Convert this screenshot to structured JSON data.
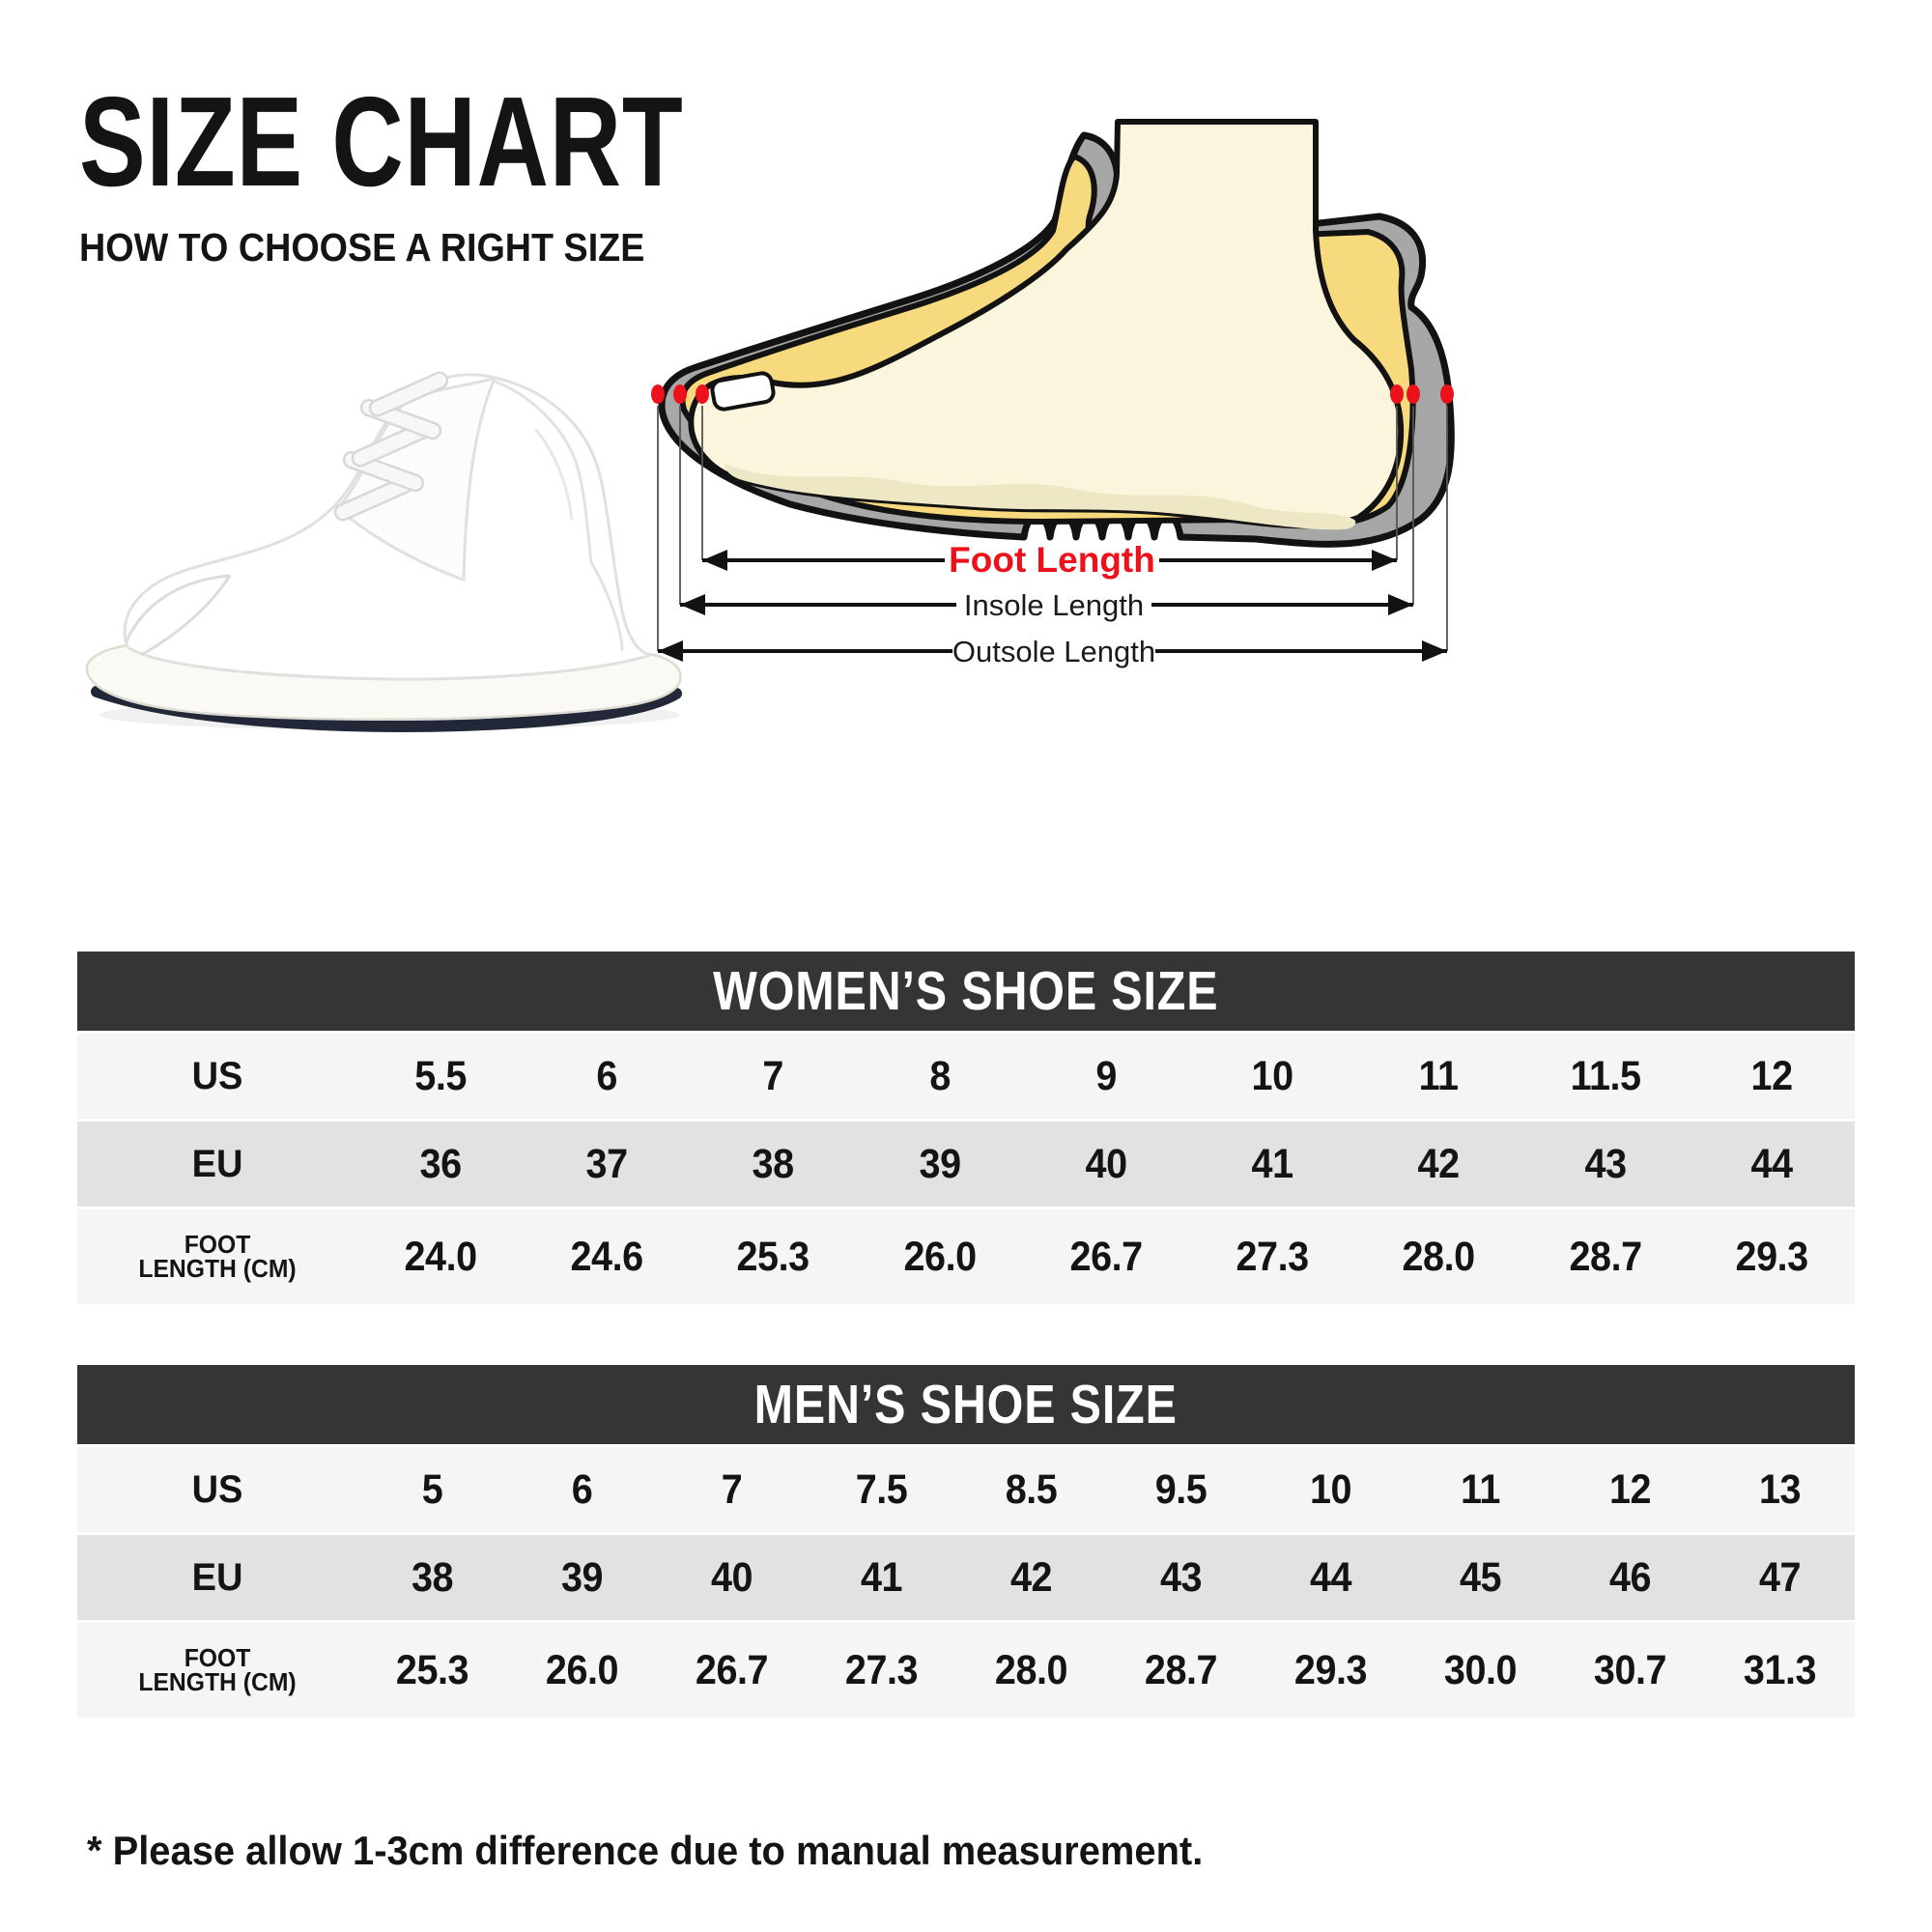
{
  "page": {
    "title": "SIZE CHART",
    "subtitle": "HOW TO CHOOSE A RIGHT SIZE",
    "footnote": "* Please allow 1-3cm difference due to manual measurement."
  },
  "diagram": {
    "labels": {
      "foot_length": "Foot Length",
      "insole_length": "Insole Length",
      "outsole_length": "Outsole Length"
    },
    "icons": [
      "red-marker-dot",
      "double-headed-arrow"
    ],
    "colors": {
      "accent_red": "#ec111a",
      "shoe_gray": "#a7a7a7",
      "insole_yellow": "#f7da7e",
      "foot_cream": "#faf5dc",
      "foot_shade": "#eee7c6",
      "outline_black": "#121212"
    }
  },
  "tables": {
    "women": {
      "title": "WOMEN’S SHOE SIZE",
      "rows": [
        {
          "label": "US",
          "values": [
            "5.5",
            "6",
            "7",
            "8",
            "9",
            "10",
            "11",
            "11.5",
            "12"
          ]
        },
        {
          "label": "EU",
          "values": [
            "36",
            "37",
            "38",
            "39",
            "40",
            "41",
            "42",
            "43",
            "44"
          ]
        },
        {
          "label": "FOOT",
          "label2": "LENGTH (CM)",
          "values": [
            "24.0",
            "24.6",
            "25.3",
            "26.0",
            "26.7",
            "27.3",
            "28.0",
            "28.7",
            "29.3"
          ]
        }
      ]
    },
    "men": {
      "title": "MEN’S SHOE SIZE",
      "rows": [
        {
          "label": "US",
          "values": [
            "5",
            "6",
            "7",
            "7.5",
            "8.5",
            "9.5",
            "10",
            "11",
            "12",
            "13"
          ]
        },
        {
          "label": "EU",
          "values": [
            "38",
            "39",
            "40",
            "41",
            "42",
            "43",
            "44",
            "45",
            "46",
            "47"
          ]
        },
        {
          "label": "FOOT",
          "label2": "LENGTH (CM)",
          "values": [
            "25.3",
            "26.0",
            "26.7",
            "27.3",
            "28.0",
            "28.7",
            "29.3",
            "30.0",
            "30.7",
            "31.3"
          ]
        }
      ]
    }
  },
  "chart_data": [
    {
      "type": "table",
      "title": "WOMEN’S SHOE SIZE",
      "columns": [
        "US",
        "EU",
        "FOOT LENGTH (CM)"
      ],
      "us": [
        5.5,
        6,
        7,
        8,
        9,
        10,
        11,
        11.5,
        12
      ],
      "eu": [
        36,
        37,
        38,
        39,
        40,
        41,
        42,
        43,
        44
      ],
      "foot_length_cm": [
        24.0,
        24.6,
        25.3,
        26.0,
        26.7,
        27.3,
        28.0,
        28.7,
        29.3
      ]
    },
    {
      "type": "table",
      "title": "MEN’S SHOE SIZE",
      "columns": [
        "US",
        "EU",
        "FOOT LENGTH (CM)"
      ],
      "us": [
        5,
        6,
        7,
        7.5,
        8.5,
        9.5,
        10,
        11,
        12,
        13
      ],
      "eu": [
        38,
        39,
        40,
        41,
        42,
        43,
        44,
        45,
        46,
        47
      ],
      "foot_length_cm": [
        25.3,
        26.0,
        26.7,
        27.3,
        28.0,
        28.7,
        29.3,
        30.0,
        30.7,
        31.3
      ]
    }
  ],
  "colors": {
    "table_header_bg": "#353535",
    "row_light": "#f5f5f5",
    "row_dark": "#e2e2e2",
    "accent_red": "#ec111a"
  }
}
